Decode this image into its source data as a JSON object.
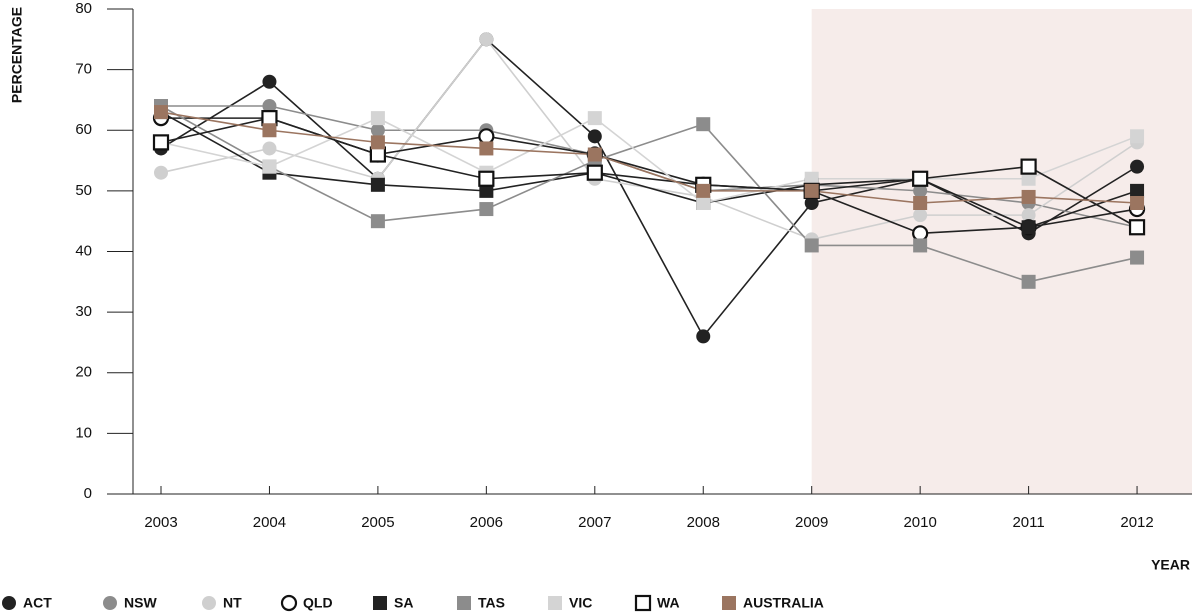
{
  "chart_data": {
    "type": "line",
    "y_label": "PERCENTAGE",
    "x_label": "YEAR",
    "categories": [
      "2003",
      "2004",
      "2005",
      "2006",
      "2007",
      "2008",
      "2009",
      "2010",
      "2011",
      "2012"
    ],
    "ylim": [
      0,
      80
    ],
    "yticks": [
      0,
      10,
      20,
      30,
      40,
      50,
      60,
      70,
      80
    ],
    "series": [
      {
        "name": "ACT",
        "color": "#222222",
        "marker": "circle",
        "filled": true,
        "values": [
          57,
          68,
          52,
          75,
          59,
          26,
          48,
          52,
          43,
          54
        ]
      },
      {
        "name": "NSW",
        "color": "#8c8c8c",
        "marker": "circle",
        "filled": true,
        "values": [
          64,
          64,
          60,
          60,
          56,
          50,
          51,
          50,
          48,
          44
        ]
      },
      {
        "name": "NT",
        "color": "#cfcfcf",
        "marker": "circle",
        "filled": true,
        "values": [
          53,
          57,
          52,
          75,
          52,
          49,
          42,
          46,
          46,
          58
        ]
      },
      {
        "name": "QLD",
        "color": "#222222",
        "marker": "circle",
        "filled": false,
        "values": [
          62,
          62,
          56,
          59,
          56,
          51,
          50,
          43,
          44,
          47
        ]
      },
      {
        "name": "SA",
        "color": "#222222",
        "marker": "square",
        "filled": true,
        "values": [
          63,
          53,
          51,
          50,
          53,
          48,
          51,
          52,
          44,
          50
        ]
      },
      {
        "name": "TAS",
        "color": "#8c8c8c",
        "marker": "square",
        "filled": true,
        "values": [
          64,
          54,
          45,
          47,
          55,
          61,
          41,
          41,
          35,
          39
        ]
      },
      {
        "name": "VIC",
        "color": "#d4d4d4",
        "marker": "square",
        "filled": true,
        "values": [
          58,
          54,
          62,
          53,
          62,
          48,
          52,
          52,
          52,
          59
        ]
      },
      {
        "name": "WA",
        "color": "#222222",
        "marker": "square",
        "filled": false,
        "values": [
          58,
          62,
          56,
          52,
          53,
          51,
          50,
          52,
          54,
          44
        ]
      },
      {
        "name": "AUSTRALIA",
        "color": "#9b7560",
        "marker": "square",
        "filled": true,
        "values": [
          63,
          60,
          58,
          57,
          56,
          50,
          50,
          48,
          49,
          48
        ]
      }
    ]
  }
}
